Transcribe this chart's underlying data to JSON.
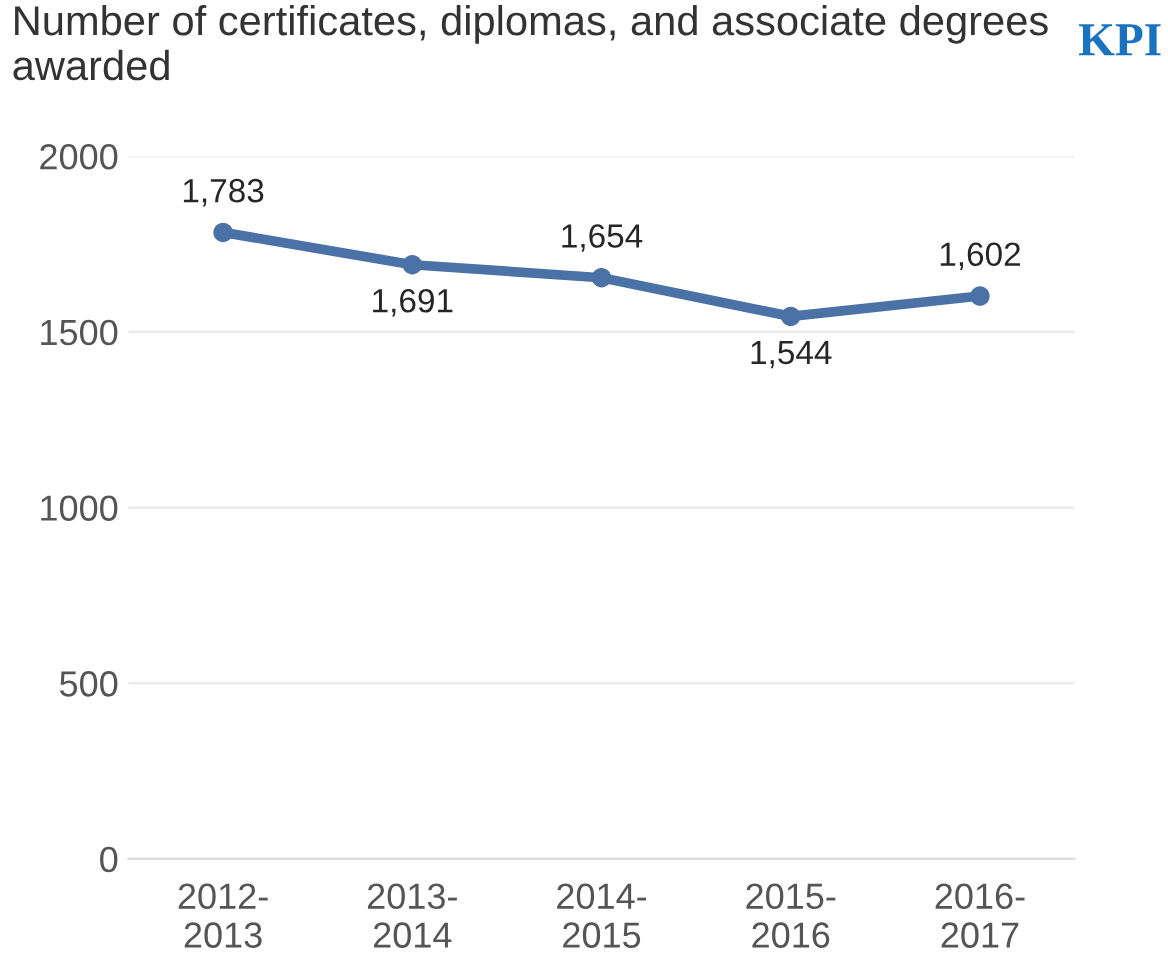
{
  "chart_data": {
    "type": "line",
    "title": "Number of certificates, diplomas, and associate degrees awarded",
    "annotations": [
      "KPI"
    ],
    "categories": [
      "2012-\n2013",
      "2013-\n2014",
      "2014-\n2015",
      "2015-\n2016",
      "2016-\n2017"
    ],
    "series": [
      {
        "color": "#4a72a6",
        "values": [
          1783,
          1691,
          1654,
          1544,
          1602
        ]
      }
    ],
    "value_labels": [
      "1,783",
      "1,691",
      "1,654",
      "1,544",
      "1,602"
    ],
    "ylim": [
      0,
      2000
    ],
    "yticks": [
      0,
      500,
      1000,
      1500,
      2000
    ],
    "grid": "y",
    "marker": "circle",
    "line_style": "solid",
    "legend": false
  }
}
